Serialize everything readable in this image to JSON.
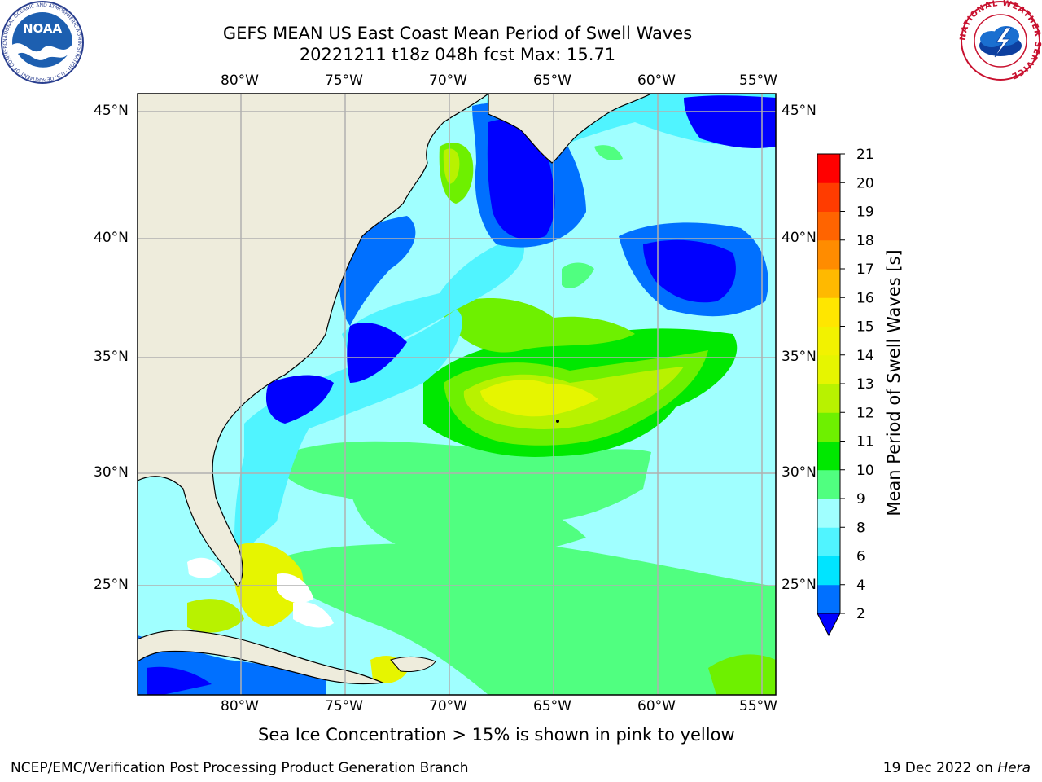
{
  "title": {
    "line1": "GEFS MEAN US East Coast Mean Period of Swell Waves",
    "line2": "20221211 t18z 048h fcst   Max: 15.71"
  },
  "logos": {
    "left": {
      "text": "NOAA",
      "ring_text": "NATIONAL OCEANIC AND ATMOSPHERIC ADMINISTRATION · U.S. DEPARTMENT OF COMMERCE ·"
    },
    "right": {
      "ring_text": "NATIONAL WEATHER SERVICE"
    }
  },
  "map": {
    "lon_ticks": [
      "80°W",
      "75°W",
      "70°W",
      "65°W",
      "60°W",
      "55°W"
    ],
    "lat_ticks": [
      "45°N",
      "40°N",
      "35°N",
      "30°N",
      "25°N"
    ],
    "colors": {
      "land": "#eeecdc",
      "no_data": "#ffffff",
      "gridline": "#b0b0b0",
      "coast": "#000000"
    }
  },
  "colorbar": {
    "label": "Mean Period of Swell Waves [s]",
    "ticks": [
      "2",
      "4",
      "6",
      "8",
      "9",
      "10",
      "11",
      "12",
      "13",
      "14",
      "15",
      "16",
      "17",
      "18",
      "19",
      "20",
      "21"
    ],
    "colors": [
      "#0070ff",
      "#00e4ff",
      "#50f4ff",
      "#a0ffff",
      "#50ff80",
      "#00e800",
      "#6ef000",
      "#b8f200",
      "#e6f500",
      "#f2f200",
      "#ffe600",
      "#ffb900",
      "#ff8c00",
      "#ff6400",
      "#ff3c00",
      "#ff0000"
    ],
    "under_color": "#0000ff"
  },
  "caption": "Sea Ice Concentration > 15% is shown in pink to yellow",
  "footer": {
    "left": "NCEP/EMC/Verification Post Processing Product Generation Branch",
    "right_prefix": "19 Dec 2022 on ",
    "right_italic": "Hera"
  }
}
